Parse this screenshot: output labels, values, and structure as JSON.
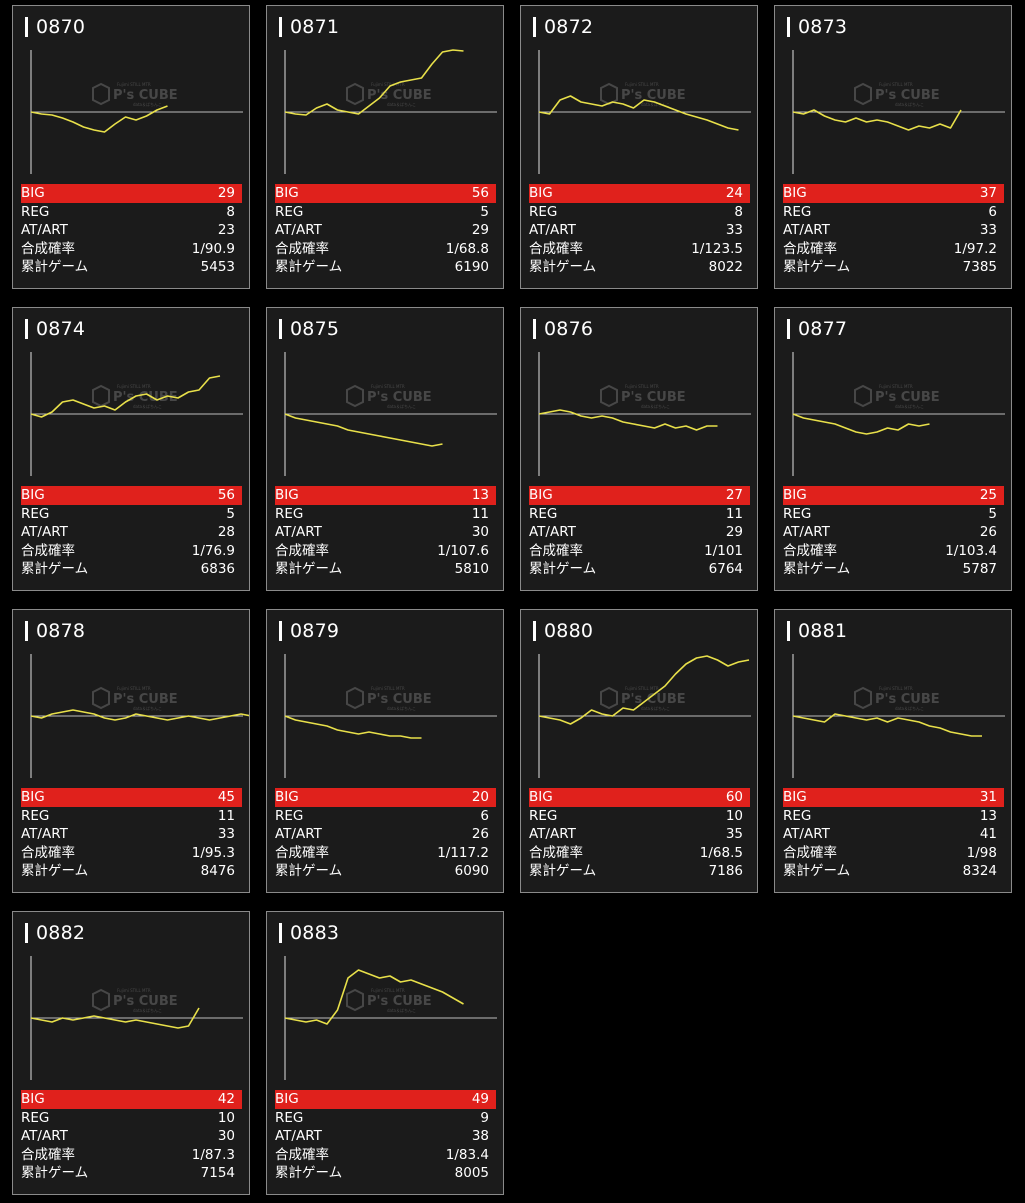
{
  "labels": {
    "big": "BIG",
    "reg": "REG",
    "at": "AT/ART",
    "prob": "合成確率",
    "games": "累計ゲーム"
  },
  "watermark": {
    "text": "P's CUBE",
    "small_top": "Fujimi STILL MTR",
    "small_bottom": "data＆ぱちんこ"
  },
  "colors": {
    "line": "#e8e04a",
    "big_bg": "#e0211c",
    "card_bg": "#1b1b1b"
  },
  "machines": [
    {
      "id": "0870",
      "big": "29",
      "reg": "8",
      "at": "23",
      "prob": "1/90.9",
      "games": "5453",
      "trend": [
        0,
        -2,
        -3,
        -6,
        -10,
        -15,
        -18,
        -20,
        -12,
        -5,
        -8,
        -4,
        2,
        6
      ]
    },
    {
      "id": "0871",
      "big": "56",
      "reg": "5",
      "at": "29",
      "prob": "1/68.8",
      "games": "6190",
      "trend": [
        0,
        -2,
        -3,
        4,
        8,
        2,
        0,
        -2,
        6,
        14,
        26,
        30,
        32,
        34,
        48,
        60,
        62,
        61
      ]
    },
    {
      "id": "0872",
      "big": "24",
      "reg": "8",
      "at": "33",
      "prob": "1/123.5",
      "games": "8022",
      "trend": [
        0,
        -2,
        12,
        16,
        10,
        8,
        6,
        10,
        8,
        4,
        12,
        10,
        6,
        2,
        -2,
        -5,
        -8,
        -12,
        -16,
        -18
      ]
    },
    {
      "id": "0873",
      "big": "37",
      "reg": "6",
      "at": "33",
      "prob": "1/97.2",
      "games": "7385",
      "trend": [
        0,
        -2,
        2,
        -4,
        -8,
        -10,
        -6,
        -10,
        -8,
        -10,
        -14,
        -18,
        -14,
        -16,
        -12,
        -16,
        2
      ]
    },
    {
      "id": "0874",
      "big": "56",
      "reg": "5",
      "at": "28",
      "prob": "1/76.9",
      "games": "6836",
      "trend": [
        0,
        -3,
        2,
        12,
        14,
        10,
        6,
        8,
        4,
        12,
        18,
        20,
        14,
        18,
        16,
        22,
        24,
        36,
        38
      ]
    },
    {
      "id": "0875",
      "big": "13",
      "reg": "11",
      "at": "30",
      "prob": "1/107.6",
      "games": "5810",
      "trend": [
        0,
        -4,
        -6,
        -8,
        -10,
        -12,
        -16,
        -18,
        -20,
        -22,
        -24,
        -26,
        -28,
        -30,
        -32,
        -30
      ]
    },
    {
      "id": "0876",
      "big": "27",
      "reg": "11",
      "at": "29",
      "prob": "1/101",
      "games": "6764",
      "trend": [
        0,
        2,
        4,
        2,
        -2,
        -4,
        -2,
        -4,
        -8,
        -10,
        -12,
        -14,
        -10,
        -14,
        -12,
        -16,
        -12,
        -12
      ]
    },
    {
      "id": "0877",
      "big": "25",
      "reg": "5",
      "at": "26",
      "prob": "1/103.4",
      "games": "5787",
      "trend": [
        0,
        -4,
        -6,
        -8,
        -10,
        -14,
        -18,
        -20,
        -18,
        -14,
        -16,
        -10,
        -12,
        -10
      ]
    },
    {
      "id": "0878",
      "big": "45",
      "reg": "11",
      "at": "33",
      "prob": "1/95.3",
      "games": "8476",
      "trend": [
        0,
        -2,
        2,
        4,
        6,
        4,
        2,
        -2,
        -4,
        -2,
        2,
        0,
        -2,
        -4,
        -2,
        0,
        -2,
        -4,
        -2,
        0,
        2,
        0
      ]
    },
    {
      "id": "0879",
      "big": "20",
      "reg": "6",
      "at": "26",
      "prob": "1/117.2",
      "games": "6090",
      "trend": [
        0,
        -4,
        -6,
        -8,
        -10,
        -14,
        -16,
        -18,
        -16,
        -18,
        -20,
        -20,
        -22,
        -22
      ]
    },
    {
      "id": "0880",
      "big": "60",
      "reg": "10",
      "at": "35",
      "prob": "1/68.5",
      "games": "7186",
      "trend": [
        0,
        -2,
        -4,
        -8,
        -2,
        6,
        2,
        0,
        8,
        6,
        14,
        22,
        30,
        42,
        52,
        58,
        60,
        56,
        50,
        54,
        56
      ]
    },
    {
      "id": "0881",
      "big": "31",
      "reg": "13",
      "at": "41",
      "prob": "1/98",
      "games": "8324",
      "trend": [
        0,
        -2,
        -4,
        -6,
        2,
        0,
        -2,
        -4,
        -2,
        -6,
        -2,
        -4,
        -6,
        -10,
        -12,
        -16,
        -18,
        -20,
        -20
      ]
    },
    {
      "id": "0882",
      "big": "42",
      "reg": "10",
      "at": "30",
      "prob": "1/87.3",
      "games": "7154",
      "trend": [
        0,
        -2,
        -4,
        0,
        -2,
        0,
        2,
        0,
        -2,
        -4,
        -2,
        -4,
        -6,
        -8,
        -10,
        -8,
        10
      ]
    },
    {
      "id": "0883",
      "big": "49",
      "reg": "9",
      "at": "38",
      "prob": "1/83.4",
      "games": "8005",
      "trend": [
        0,
        -2,
        -4,
        -2,
        -6,
        8,
        40,
        48,
        44,
        40,
        42,
        36,
        38,
        34,
        30,
        26,
        20,
        14
      ]
    }
  ]
}
